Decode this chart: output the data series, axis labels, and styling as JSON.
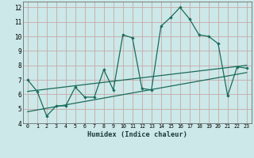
{
  "xlabel": "Humidex (Indice chaleur)",
  "background_color": "#cce8e8",
  "grid_color": "#c8a8a8",
  "line_color": "#1a6b5a",
  "xlim": [
    -0.5,
    23.5
  ],
  "ylim": [
    4,
    12.4
  ],
  "yticks": [
    4,
    5,
    6,
    7,
    8,
    9,
    10,
    11,
    12
  ],
  "xticks": [
    0,
    1,
    2,
    3,
    4,
    5,
    6,
    7,
    8,
    9,
    10,
    11,
    12,
    13,
    14,
    15,
    16,
    17,
    18,
    19,
    20,
    21,
    22,
    23
  ],
  "series1_x": [
    0,
    1,
    2,
    3,
    4,
    5,
    6,
    7,
    8,
    9,
    10,
    11,
    12,
    13,
    14,
    15,
    16,
    17,
    18,
    19,
    20,
    21,
    22,
    23
  ],
  "series1_y": [
    7.0,
    6.2,
    4.5,
    5.2,
    5.2,
    6.5,
    5.8,
    5.8,
    7.7,
    6.3,
    10.1,
    9.9,
    6.4,
    6.3,
    10.7,
    11.3,
    12.0,
    11.2,
    10.1,
    10.0,
    9.5,
    5.9,
    7.9,
    7.8
  ],
  "series2_x": [
    0,
    23
  ],
  "series2_y": [
    4.8,
    7.5
  ],
  "series3_x": [
    0,
    23
  ],
  "series3_y": [
    6.2,
    8.0
  ]
}
